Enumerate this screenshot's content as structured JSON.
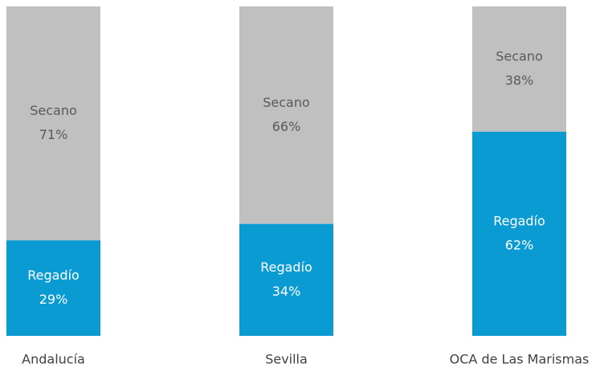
{
  "chart_data": {
    "type": "stacked_bar_100",
    "categories": [
      "Andalucía",
      "Sevilla",
      "OCA de Las Marismas"
    ],
    "ylim": [
      0,
      100
    ],
    "series": [
      {
        "name": "Regadío",
        "color": "#0b9bd3",
        "values": [
          29,
          34,
          62
        ],
        "value_labels": [
          "29%",
          "34%",
          "62%"
        ]
      },
      {
        "name": "Secano",
        "color": "#c0c0c0",
        "values": [
          71,
          66,
          38
        ],
        "value_labels": [
          "71%",
          "66%",
          "38%"
        ]
      }
    ]
  }
}
